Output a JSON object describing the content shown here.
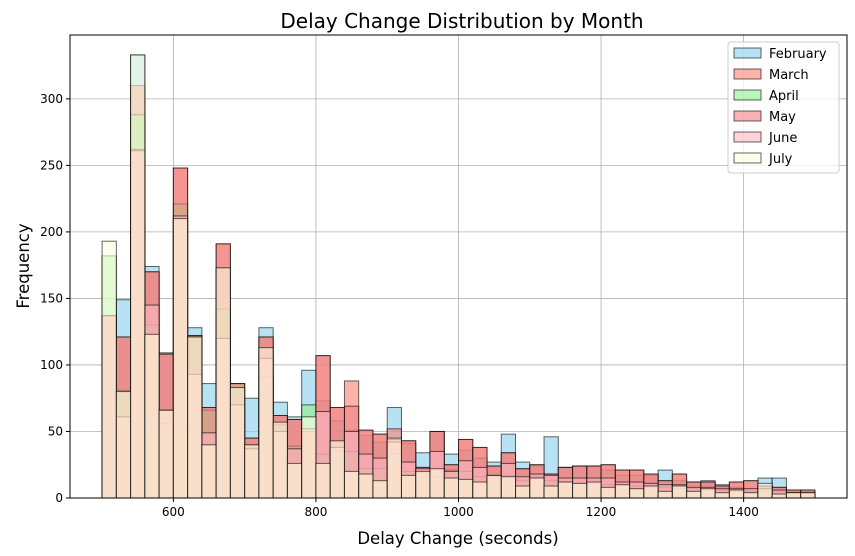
{
  "chart_data": {
    "type": "histogram",
    "title": "Delay Change Distribution by Month",
    "xlabel": "Delay Change (seconds)",
    "ylabel": "Frequency",
    "xlim": [
      455,
      1545
    ],
    "ylim": [
      0,
      348
    ],
    "x_ticks": [
      600,
      800,
      1000,
      1200,
      1400
    ],
    "y_ticks": [
      0,
      50,
      100,
      150,
      200,
      250,
      300
    ],
    "grid": true,
    "legend_position": "top-right",
    "bin_start": 500,
    "bin_width": 20,
    "bin_count": 50,
    "series": [
      {
        "name": "February",
        "color": "#87CEEB",
        "values": [
          137,
          149,
          333,
          174,
          109,
          210,
          128,
          86,
          173,
          83,
          75,
          128,
          72,
          61,
          96,
          73,
          58,
          51,
          47,
          42,
          68,
          41,
          34,
          50,
          33,
          36,
          30,
          27,
          48,
          27,
          24,
          46,
          23,
          24,
          24,
          21,
          17,
          17,
          17,
          21,
          13,
          12,
          13,
          10,
          8,
          7,
          15,
          15,
          5,
          5
        ]
      },
      {
        "name": "March",
        "color": "#FA8072",
        "values": [
          137,
          121,
          310,
          170,
          109,
          248,
          122,
          68,
          191,
          86,
          45,
          121,
          62,
          59,
          50,
          107,
          68,
          88,
          51,
          48,
          52,
          43,
          23,
          50,
          25,
          44,
          38,
          24,
          34,
          22,
          25,
          18,
          23,
          24,
          24,
          25,
          21,
          21,
          18,
          13,
          18,
          12,
          12,
          9,
          12,
          13,
          9,
          8,
          6,
          6
        ]
      },
      {
        "name": "April",
        "color": "#90EE90",
        "values": [
          182,
          81,
          288,
          130,
          56,
          221,
          122,
          66,
          142,
          86,
          40,
          91,
          55,
          39,
          70,
          33,
          35,
          35,
          22,
          22,
          33,
          20,
          19,
          16,
          21,
          20,
          16,
          16,
          17,
          13,
          16,
          13,
          12,
          11,
          11,
          10,
          9,
          9,
          8,
          8,
          7,
          7,
          6,
          6,
          5,
          5,
          5,
          5,
          4,
          4
        ]
      },
      {
        "name": "May",
        "color": "#F08080",
        "values": [
          137,
          121,
          262,
          170,
          108,
          248,
          122,
          68,
          191,
          86,
          45,
          121,
          62,
          59,
          50,
          107,
          68,
          69,
          51,
          48,
          44,
          43,
          23,
          50,
          25,
          44,
          38,
          24,
          34,
          22,
          25,
          18,
          23,
          24,
          24,
          25,
          21,
          21,
          18,
          13,
          18,
          12,
          12,
          9,
          12,
          13,
          9,
          8,
          6,
          6
        ]
      },
      {
        "name": "June",
        "color": "#FFB6C1",
        "values": [
          137,
          61,
          261,
          145,
          66,
          212,
          93,
          49,
          120,
          70,
          37,
          105,
          50,
          37,
          52,
          65,
          38,
          50,
          33,
          30,
          42,
          27,
          22,
          35,
          20,
          28,
          23,
          17,
          26,
          16,
          18,
          17,
          15,
          15,
          15,
          15,
          12,
          12,
          11,
          10,
          10,
          8,
          8,
          7,
          7,
          7,
          7,
          6,
          4,
          4
        ]
      },
      {
        "name": "July",
        "color": "#FFFFE0",
        "values": [
          193,
          80,
          333,
          123,
          66,
          210,
          121,
          40,
          173,
          83,
          40,
          113,
          57,
          26,
          61,
          26,
          43,
          20,
          18,
          13,
          45,
          17,
          20,
          22,
          15,
          14,
          12,
          17,
          16,
          9,
          15,
          9,
          12,
          11,
          12,
          8,
          10,
          7,
          9,
          5,
          9,
          5,
          7,
          4,
          6,
          4,
          11,
          3,
          4,
          4
        ]
      }
    ]
  }
}
